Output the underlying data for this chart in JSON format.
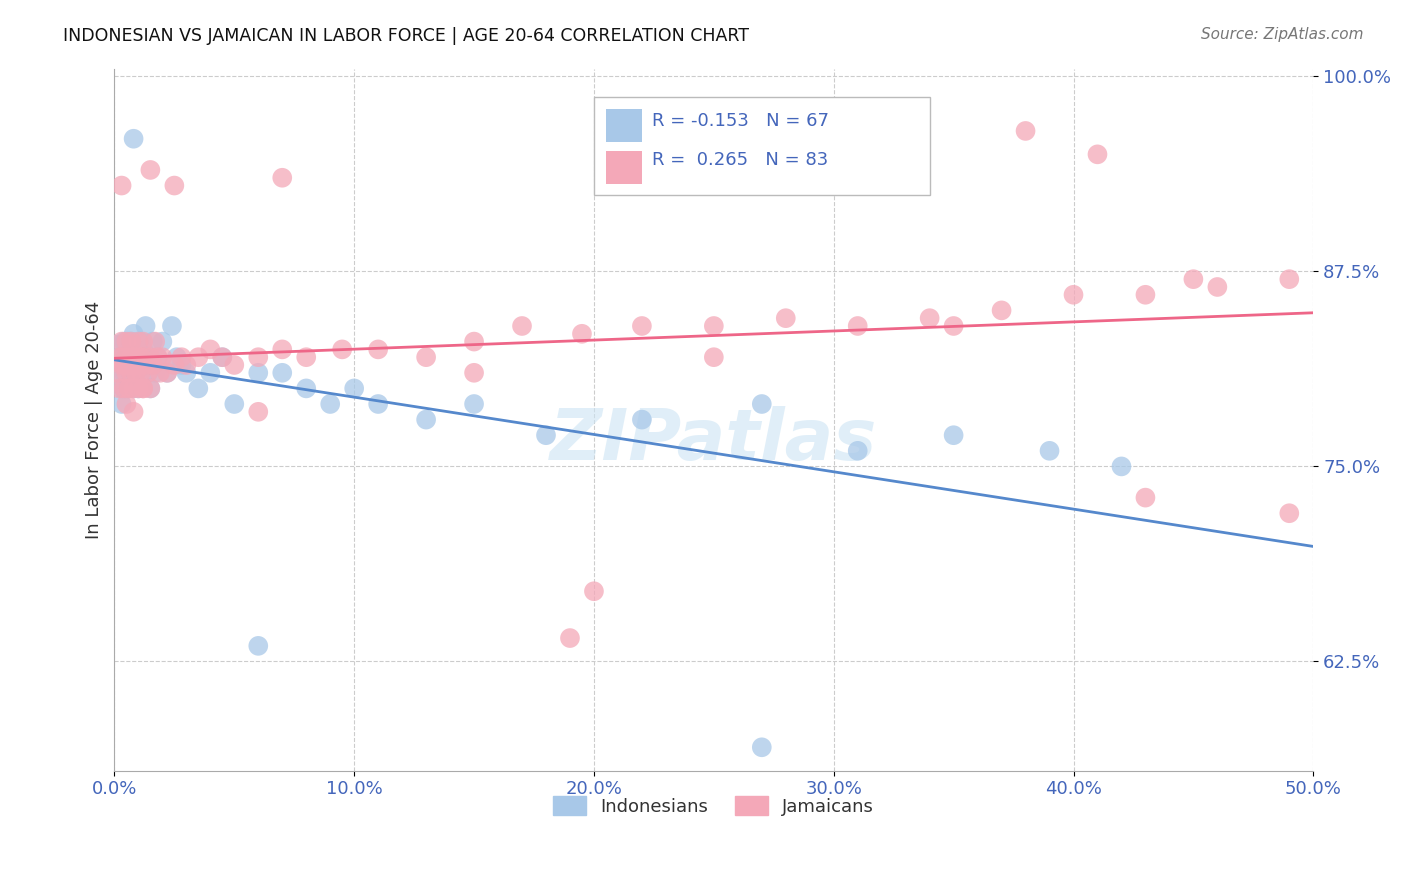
{
  "title": "INDONESIAN VS JAMAICAN IN LABOR FORCE | AGE 20-64 CORRELATION CHART",
  "source": "Source: ZipAtlas.com",
  "ylabel": "In Labor Force | Age 20-64",
  "xlim": [
    0.0,
    0.5
  ],
  "ylim": [
    0.555,
    1.005
  ],
  "xticks": [
    0.0,
    0.1,
    0.2,
    0.3,
    0.4,
    0.5
  ],
  "xticklabels": [
    "0.0%",
    "10.0%",
    "20.0%",
    "30.0%",
    "40.0%",
    "50.0%"
  ],
  "yticks": [
    0.625,
    0.75,
    0.875,
    1.0
  ],
  "yticklabels": [
    "62.5%",
    "75.0%",
    "87.5%",
    "100.0%"
  ],
  "blue_color": "#a8c8e8",
  "pink_color": "#f4a8b8",
  "blue_line_color": "#5588cc",
  "pink_line_color": "#ee6688",
  "tick_color": "#4466bb",
  "watermark": "ZIPatlas",
  "indonesian_x": [
    0.001,
    0.002,
    0.002,
    0.003,
    0.003,
    0.003,
    0.004,
    0.004,
    0.004,
    0.005,
    0.005,
    0.005,
    0.006,
    0.006,
    0.006,
    0.007,
    0.007,
    0.007,
    0.008,
    0.008,
    0.008,
    0.009,
    0.009,
    0.01,
    0.01,
    0.01,
    0.011,
    0.011,
    0.012,
    0.012,
    0.013,
    0.013,
    0.014,
    0.015,
    0.015,
    0.016,
    0.017,
    0.018,
    0.019,
    0.02,
    0.022,
    0.024,
    0.026,
    0.028,
    0.03,
    0.035,
    0.04,
    0.045,
    0.05,
    0.06,
    0.07,
    0.08,
    0.09,
    0.1,
    0.11,
    0.13,
    0.15,
    0.18,
    0.22,
    0.27,
    0.31,
    0.35,
    0.39,
    0.42,
    0.008,
    0.27,
    0.06
  ],
  "indonesian_y": [
    0.828,
    0.81,
    0.82,
    0.815,
    0.8,
    0.79,
    0.81,
    0.83,
    0.8,
    0.82,
    0.8,
    0.81,
    0.83,
    0.815,
    0.8,
    0.82,
    0.81,
    0.83,
    0.8,
    0.815,
    0.835,
    0.825,
    0.81,
    0.83,
    0.82,
    0.8,
    0.83,
    0.82,
    0.825,
    0.815,
    0.82,
    0.84,
    0.81,
    0.8,
    0.82,
    0.83,
    0.81,
    0.82,
    0.815,
    0.83,
    0.81,
    0.84,
    0.82,
    0.815,
    0.81,
    0.8,
    0.81,
    0.82,
    0.79,
    0.81,
    0.81,
    0.8,
    0.79,
    0.8,
    0.79,
    0.78,
    0.79,
    0.77,
    0.78,
    0.79,
    0.76,
    0.77,
    0.76,
    0.75,
    0.96,
    0.57,
    0.635
  ],
  "jamaican_x": [
    0.001,
    0.002,
    0.002,
    0.003,
    0.003,
    0.003,
    0.004,
    0.004,
    0.005,
    0.005,
    0.005,
    0.006,
    0.006,
    0.007,
    0.007,
    0.007,
    0.008,
    0.008,
    0.009,
    0.009,
    0.01,
    0.01,
    0.01,
    0.011,
    0.011,
    0.012,
    0.012,
    0.013,
    0.013,
    0.014,
    0.015,
    0.015,
    0.016,
    0.017,
    0.018,
    0.019,
    0.02,
    0.022,
    0.025,
    0.028,
    0.03,
    0.035,
    0.04,
    0.045,
    0.05,
    0.06,
    0.07,
    0.08,
    0.095,
    0.11,
    0.13,
    0.15,
    0.17,
    0.195,
    0.22,
    0.25,
    0.28,
    0.31,
    0.34,
    0.37,
    0.4,
    0.43,
    0.46,
    0.49,
    0.003,
    0.06,
    0.15,
    0.25,
    0.35,
    0.45,
    0.005,
    0.008,
    0.012,
    0.24,
    0.38,
    0.41,
    0.015,
    0.2,
    0.43,
    0.49,
    0.19,
    0.025,
    0.07
  ],
  "jamaican_y": [
    0.81,
    0.82,
    0.8,
    0.815,
    0.83,
    0.82,
    0.8,
    0.815,
    0.83,
    0.82,
    0.81,
    0.8,
    0.815,
    0.82,
    0.81,
    0.83,
    0.82,
    0.8,
    0.81,
    0.82,
    0.8,
    0.815,
    0.83,
    0.82,
    0.81,
    0.8,
    0.83,
    0.82,
    0.815,
    0.81,
    0.82,
    0.8,
    0.815,
    0.83,
    0.82,
    0.81,
    0.82,
    0.81,
    0.815,
    0.82,
    0.815,
    0.82,
    0.825,
    0.82,
    0.815,
    0.82,
    0.825,
    0.82,
    0.825,
    0.825,
    0.82,
    0.83,
    0.84,
    0.835,
    0.84,
    0.84,
    0.845,
    0.84,
    0.845,
    0.85,
    0.86,
    0.86,
    0.865,
    0.87,
    0.93,
    0.785,
    0.81,
    0.82,
    0.84,
    0.87,
    0.79,
    0.785,
    0.8,
    0.96,
    0.965,
    0.95,
    0.94,
    0.67,
    0.73,
    0.72,
    0.64,
    0.93,
    0.935
  ]
}
